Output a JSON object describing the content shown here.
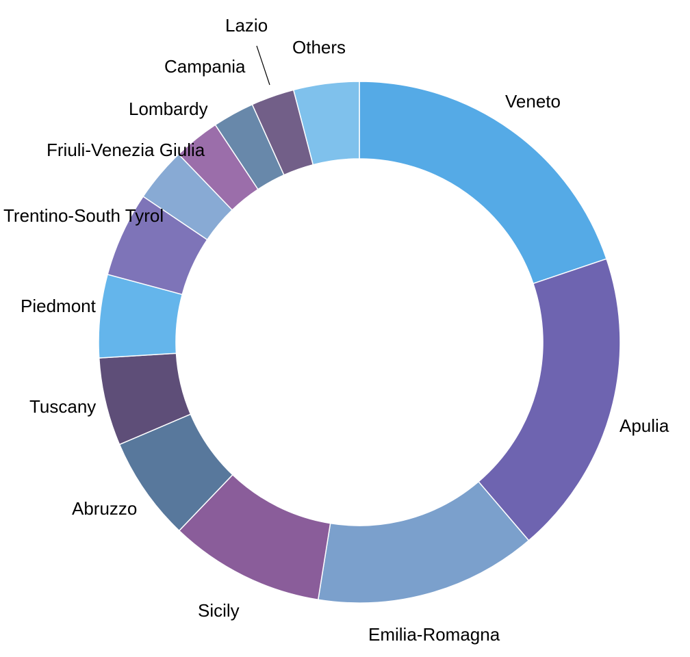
{
  "chart_data": {
    "type": "pie",
    "donut": true,
    "start_angle_deg": 0,
    "direction": "clockwise",
    "slices": [
      {
        "label": "Veneto",
        "value": 20.0,
        "color": "#55aae6"
      },
      {
        "label": "Apulia",
        "value": 19.1,
        "color": "#6e64b0"
      },
      {
        "label": "Emilia-Romagna",
        "value": 13.9,
        "color": "#7ba0cc"
      },
      {
        "label": "Sicily",
        "value": 9.7,
        "color": "#8a5d9a"
      },
      {
        "label": "Abruzzo",
        "value": 6.5,
        "color": "#58789c"
      },
      {
        "label": "Tuscany",
        "value": 5.5,
        "color": "#5e4e78"
      },
      {
        "label": "Piedmont",
        "value": 5.2,
        "color": "#64b5eb"
      },
      {
        "label": "Trentino-South Tyrol",
        "value": 5.3,
        "color": "#7e74b8"
      },
      {
        "label": "Friuli-Venezia Giulia",
        "value": 3.4,
        "color": "#88aad4"
      },
      {
        "label": "Lombardy",
        "value": 2.9,
        "color": "#9b6eaa"
      },
      {
        "label": "Campania",
        "value": 2.6,
        "color": "#6888aa"
      },
      {
        "label": "Lazio",
        "value": 2.7,
        "color": "#725f88"
      },
      {
        "label": "Others",
        "value": 4.1,
        "color": "#7fc1ec"
      }
    ],
    "legend": "none"
  }
}
